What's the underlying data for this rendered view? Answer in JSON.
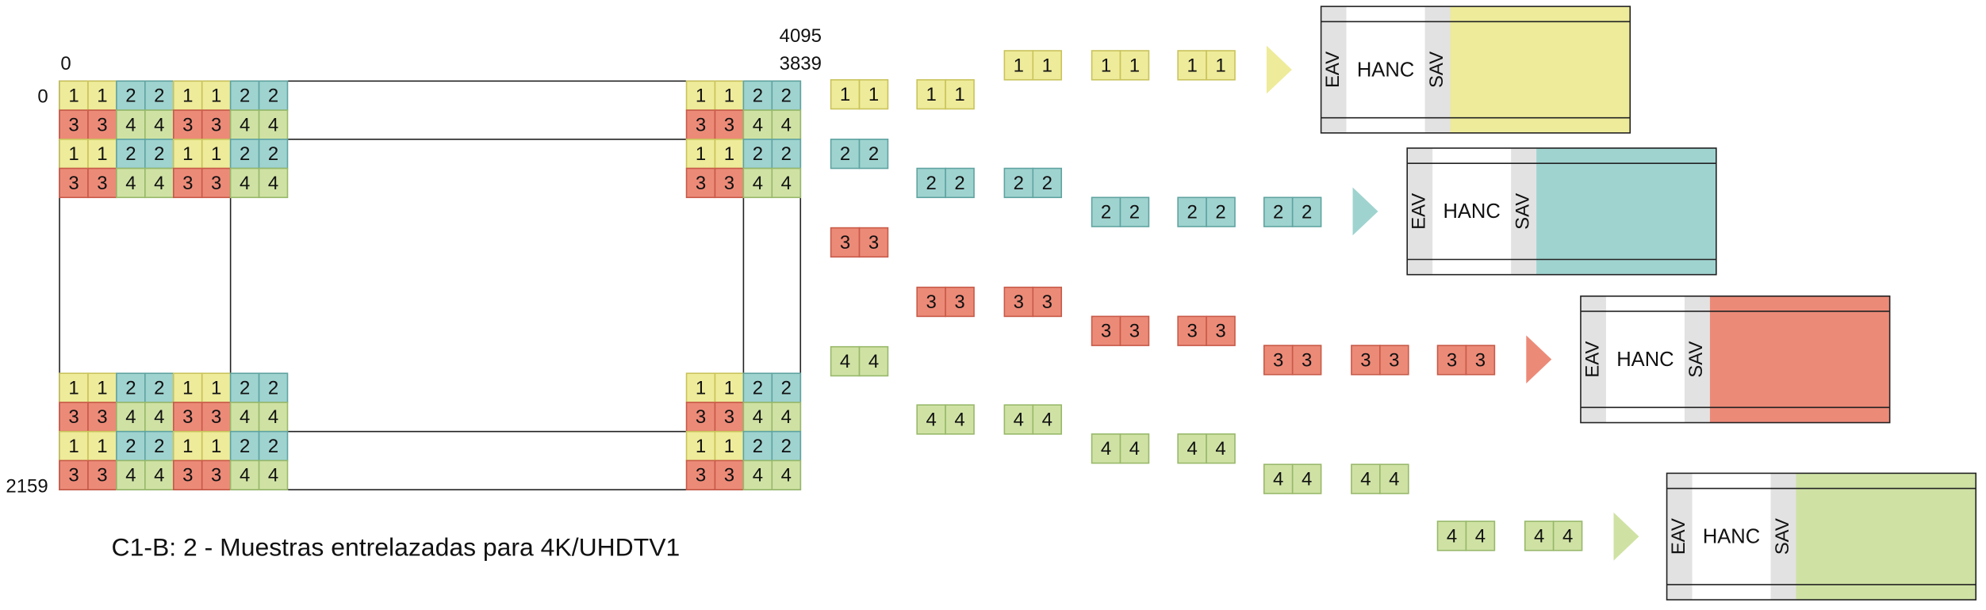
{
  "axis_labels": {
    "col_start": "0",
    "col_end_top": "4095",
    "col_end_bottom": "3839",
    "row_start": "0",
    "row_end": "2159"
  },
  "samples": [
    "1",
    "2",
    "3",
    "4"
  ],
  "blocks": {
    "eav": "EAV",
    "hanc": "HANC",
    "sav": "SAV"
  },
  "caption": "C1-B: 2 - Muestras entrelazadas para 4K/UHDTV1"
}
